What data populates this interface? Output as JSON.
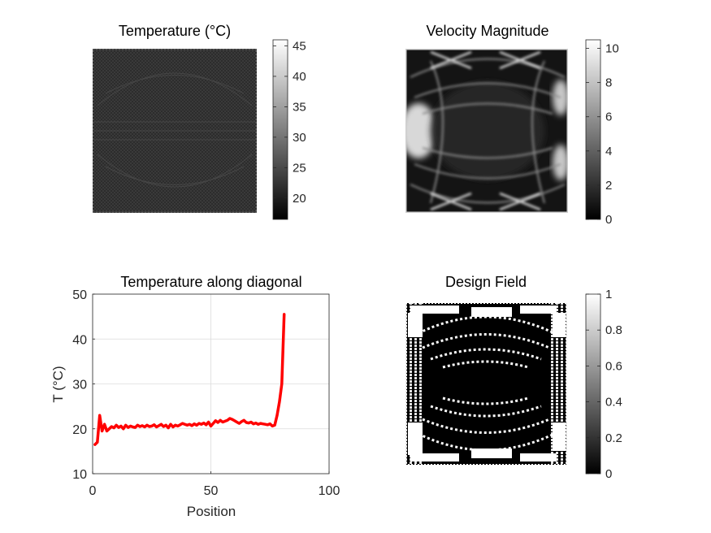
{
  "chart_data": [
    {
      "type": "heatmap",
      "title": "Temperature (°C)",
      "colormap": "gray",
      "colorbar": {
        "range": [
          16.5,
          46
        ],
        "ticks": [
          20,
          25,
          30,
          35,
          40,
          45
        ]
      }
    },
    {
      "type": "heatmap",
      "title": "Velocity Magnitude",
      "colormap": "gray",
      "colorbar": {
        "range": [
          0,
          10.5
        ],
        "ticks": [
          0,
          2,
          4,
          6,
          8,
          10
        ]
      }
    },
    {
      "type": "line",
      "title": "Temperature along diagonal",
      "xlabel": "Position",
      "ylabel": "T (°C)",
      "xlim": [
        0,
        100
      ],
      "ylim": [
        10,
        50
      ],
      "xticks": [
        0,
        50,
        100
      ],
      "yticks": [
        10,
        20,
        30,
        40,
        50
      ],
      "grid": true,
      "series": [
        {
          "color": "#ff0000",
          "x": [
            1,
            2,
            3,
            4,
            5,
            6,
            7,
            8,
            9,
            10,
            11,
            12,
            13,
            14,
            15,
            16,
            17,
            18,
            19,
            20,
            21,
            22,
            23,
            24,
            25,
            26,
            27,
            28,
            29,
            30,
            31,
            32,
            33,
            34,
            35,
            36,
            37,
            38,
            39,
            40,
            41,
            42,
            43,
            44,
            45,
            46,
            47,
            48,
            49,
            50,
            51,
            52,
            53,
            54,
            55,
            56,
            57,
            58,
            59,
            60,
            61,
            62,
            63,
            64,
            65,
            66,
            67,
            68,
            69,
            70,
            71,
            72,
            73,
            74,
            75,
            76,
            77,
            78,
            79,
            80,
            81
          ],
          "y": [
            16.5,
            17,
            23,
            19.5,
            21,
            19.5,
            20,
            20.5,
            20.2,
            20.8,
            20.3,
            20.6,
            20,
            20.8,
            20.3,
            20.6,
            20.4,
            20.3,
            20.8,
            20.5,
            20.7,
            20.4,
            20.8,
            20.5,
            20.6,
            20.9,
            20.4,
            20.7,
            21,
            20.5,
            20.8,
            20.2,
            21,
            20.4,
            20.8,
            20.6,
            20.9,
            21.2,
            21,
            20.8,
            21,
            20.7,
            21.1,
            20.8,
            21.2,
            21,
            21.3,
            20.9,
            21.5,
            20.6,
            21.2,
            21.8,
            21.4,
            21.9,
            21.5,
            21.7,
            21.9,
            22.3,
            22.1,
            21.8,
            21.5,
            21.2,
            21.6,
            21.9,
            21.4,
            21.3,
            21.5,
            21.1,
            21.3,
            21,
            21.2,
            21.1,
            21,
            20.9,
            21.1,
            20.6,
            20.8,
            23,
            26,
            30,
            45.5
          ]
        }
      ]
    },
    {
      "type": "heatmap",
      "title": "Design Field",
      "colormap": "gray",
      "colorbar": {
        "range": [
          0,
          1
        ],
        "ticks": [
          0,
          0.2,
          0.4,
          0.6,
          0.8,
          1
        ]
      }
    }
  ]
}
